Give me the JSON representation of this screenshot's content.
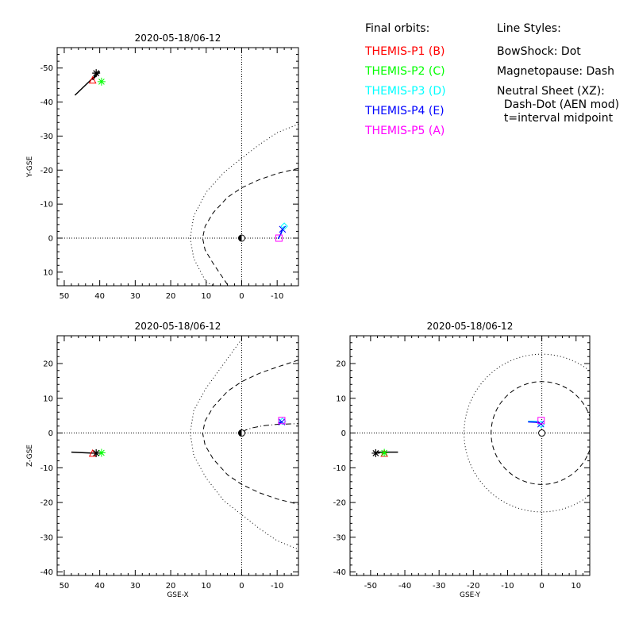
{
  "chart_data": [
    {
      "type": "line",
      "title": "2020-05-18/06-12",
      "xlabel": "",
      "ylabel": "Y-GSE",
      "xlim": [
        52,
        -16
      ],
      "ylim": [
        14,
        -56
      ],
      "xticks": [
        50,
        40,
        30,
        20,
        10,
        0,
        -10
      ],
      "yticks": [
        10,
        0,
        -10,
        -20,
        -30,
        -40,
        -50
      ],
      "xtick_labels": [
        "50",
        "40",
        "30",
        "20",
        "10",
        "0",
        "-10"
      ],
      "ytick_labels": [
        "10",
        "0",
        "-10",
        "-20",
        "-30",
        "-40",
        "-50"
      ],
      "boundaries": [
        {
          "name": "BowShock",
          "style": "dot",
          "x": [
            -16,
            -10,
            -5,
            0,
            5,
            10,
            13.5,
            14.5,
            13.5,
            10,
            7.7
          ],
          "y": [
            -33.5,
            -31,
            -27.5,
            -23.5,
            -19.3,
            -13.5,
            -6.5,
            0,
            6,
            13,
            14
          ]
        },
        {
          "name": "Magnetopause",
          "style": "dash",
          "x": [
            -16,
            -10,
            -5,
            0,
            4,
            8,
            10.3,
            11,
            10.3,
            8,
            3.8
          ],
          "y": [
            -20.5,
            -19,
            -17.2,
            -14.8,
            -12,
            -7.5,
            -3.5,
            0,
            3.5,
            7.5,
            14
          ]
        }
      ],
      "tracks": [
        {
          "name": "THEMIS-P1",
          "color": "#ff0000",
          "x": [
            47,
            40,
            42
          ],
          "y": [
            -42,
            -49,
            -46.5
          ],
          "marker": "triangle"
        },
        {
          "name": "THEMIS-P2",
          "color": "#00ff00",
          "x": [
            39.5
          ],
          "y": [
            -46
          ],
          "marker": "asterisk"
        },
        {
          "name": "THEMIS-P3",
          "color": "#00ffff",
          "x": [
            -10.3,
            -11.1,
            -12
          ],
          "y": [
            0.2,
            -1.3,
            -3.5
          ],
          "marker": "diamond"
        },
        {
          "name": "THEMIS-P4",
          "color": "#0000ff",
          "x": [
            -10.3,
            -11,
            -11.5
          ],
          "y": [
            0.2,
            -1.2,
            -2.6
          ],
          "marker": "x"
        },
        {
          "name": "THEMIS-P5",
          "color": "#ff00ff",
          "x": [
            -10.5
          ],
          "y": [
            0
          ],
          "marker": "square"
        }
      ],
      "end_marker": {
        "x": 41,
        "y": -48.5
      }
    },
    {
      "type": "line",
      "title": "2020-05-18/06-12",
      "xlabel": "GSE-X",
      "ylabel": "Z-GSE",
      "xlim": [
        52,
        -16
      ],
      "ylim": [
        -41,
        28
      ],
      "xticks": [
        50,
        40,
        30,
        20,
        10,
        0,
        -10
      ],
      "yticks": [
        -40,
        -30,
        -20,
        -10,
        0,
        10,
        20
      ],
      "xtick_labels": [
        "50",
        "40",
        "30",
        "20",
        "10",
        "0",
        "-10"
      ],
      "ytick_labels": [
        "-40",
        "-30",
        "-20",
        "-10",
        "0",
        "10",
        "20"
      ],
      "boundaries": [
        {
          "name": "BowShock",
          "style": "dot",
          "x": [
            0,
            5,
            10,
            13.5,
            14.5,
            13.5,
            10,
            5,
            0,
            -5,
            -10,
            -16
          ],
          "y": [
            27,
            20,
            13,
            6.5,
            0,
            -6.5,
            -13,
            -19.5,
            -23.5,
            -27.5,
            -31,
            -33.5
          ]
        },
        {
          "name": "Magnetopause",
          "style": "dash",
          "x": [
            -16,
            -10,
            -5,
            0,
            4,
            8,
            10.3,
            11,
            10.3,
            8,
            4,
            0,
            -5,
            -10,
            -16
          ],
          "y": [
            21,
            19,
            17.2,
            14.8,
            12,
            7.5,
            3.5,
            0,
            -3.5,
            -7.5,
            -12,
            -14.8,
            -17.2,
            -19,
            -20.5
          ]
        },
        {
          "name": "Neutral Sheet (XZ)",
          "style": "dashdot",
          "x": [
            -0.5,
            -1,
            -3,
            -6,
            -10,
            -16
          ],
          "y": [
            0,
            0.8,
            1.5,
            2.1,
            2.5,
            2.7
          ]
        }
      ],
      "tracks": [
        {
          "name": "THEMIS-P1",
          "color": "#ff0000",
          "x": [
            48,
            42
          ],
          "y": [
            -5.5,
            -5.8
          ],
          "marker": "triangle"
        },
        {
          "name": "THEMIS-P2",
          "color": "#00ff00",
          "x": [
            39.5
          ],
          "y": [
            -5.7
          ],
          "marker": "asterisk"
        },
        {
          "name": "THEMIS-P3",
          "color": "#00ffff",
          "x": [
            -10.3,
            -11.5
          ],
          "y": [
            2.8,
            3.4
          ],
          "marker": "diamond"
        },
        {
          "name": "THEMIS-P4",
          "color": "#0000ff",
          "x": [
            -10.3,
            -11.3
          ],
          "y": [
            2.8,
            3.2
          ],
          "marker": "x"
        },
        {
          "name": "THEMIS-P5",
          "color": "#ff00ff",
          "x": [
            -11.3
          ],
          "y": [
            3.6
          ],
          "marker": "square"
        }
      ],
      "end_marker": {
        "x": 41,
        "y": -5.8
      }
    },
    {
      "type": "line",
      "title": "2020-05-18/06-12",
      "xlabel": "GSE-Y",
      "ylabel": "",
      "xlim": [
        -56,
        14
      ],
      "ylim": [
        -41,
        28
      ],
      "xticks": [
        -50,
        -40,
        -30,
        -20,
        -10,
        0,
        10
      ],
      "yticks": [
        -40,
        -30,
        -20,
        -10,
        0,
        10,
        20
      ],
      "xtick_labels": [
        "-50",
        "-40",
        "-30",
        "-20",
        "-10",
        "0",
        "10"
      ],
      "ytick_labels": [
        "-40",
        "-30",
        "-20",
        "-10",
        "0",
        "10",
        "20"
      ],
      "boundaries": [
        {
          "name": "BowShock",
          "style": "dot",
          "circle_radius": 22.7
        },
        {
          "name": "Magnetopause",
          "style": "dash",
          "circle_radius": 14.8
        }
      ],
      "tracks": [
        {
          "name": "THEMIS-P1",
          "color": "#ff0000",
          "x": [
            -42,
            -48,
            -46
          ],
          "y": [
            -5.5,
            -5.5,
            -5.8
          ],
          "marker": "triangle"
        },
        {
          "name": "THEMIS-P2",
          "color": "#00ff00",
          "x": [
            -46
          ],
          "y": [
            -5.7
          ],
          "marker": "asterisk"
        },
        {
          "name": "THEMIS-P3",
          "color": "#00ffff",
          "x": [
            -4,
            -1.3,
            -0.2
          ],
          "y": [
            3.4,
            3.3,
            2.5
          ],
          "marker": "diamond"
        },
        {
          "name": "THEMIS-P4",
          "color": "#0000ff",
          "x": [
            -4,
            -1.5,
            -0.3
          ],
          "y": [
            3.2,
            3.1,
            2.6
          ],
          "marker": "x"
        },
        {
          "name": "THEMIS-P5",
          "color": "#ff00ff",
          "x": [
            -0.2
          ],
          "y": [
            3.6
          ],
          "marker": "square"
        }
      ],
      "end_marker": {
        "x": -48.5,
        "y": -5.8
      }
    }
  ],
  "legend": {
    "orbits_title": "Final orbits:",
    "orbits": [
      {
        "label": "THEMIS-P1 (B)",
        "color": "#ff0000"
      },
      {
        "label": "THEMIS-P2 (C)",
        "color": "#00ff00"
      },
      {
        "label": "THEMIS-P3 (D)",
        "color": "#00ffff"
      },
      {
        "label": "THEMIS-P4 (E)",
        "color": "#0000ff"
      },
      {
        "label": "THEMIS-P5 (A)",
        "color": "#ff00ff"
      }
    ],
    "styles_title": "Line Styles:",
    "styles": [
      "BowShock: Dot",
      "Magnetopause: Dash",
      "Neutral Sheet (XZ):",
      "  Dash-Dot (AEN mod)",
      "  t=interval midpoint"
    ]
  }
}
